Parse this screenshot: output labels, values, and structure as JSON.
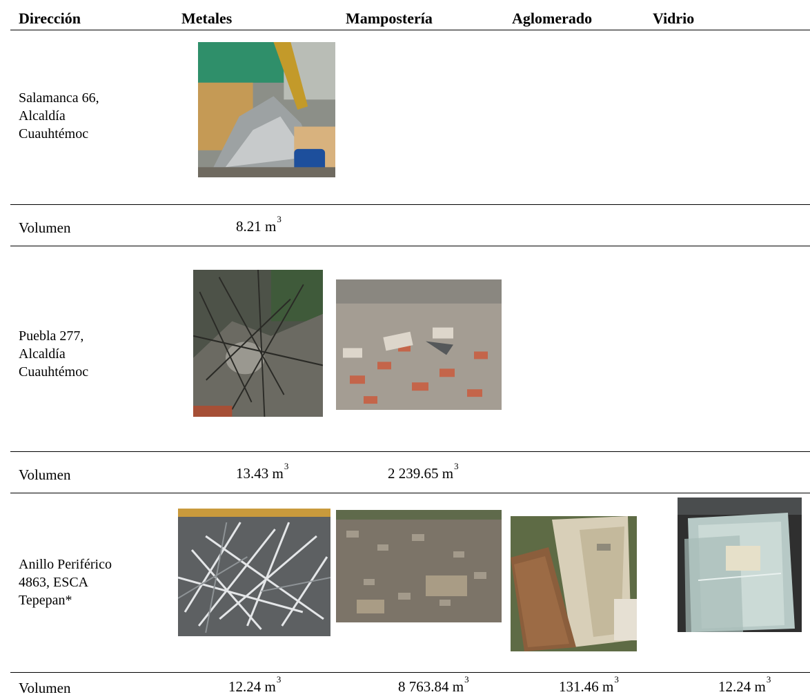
{
  "table": {
    "headers": [
      "Dirección",
      "Metales",
      "Mampostería",
      "Aglomerado",
      "Vidrio"
    ],
    "rows": [
      {
        "address_lines": [
          "Salamanca  66,",
          "Alcaldía",
          "Cuauhtémoc"
        ],
        "volume_label": "Volumen",
        "volumes": {
          "metales": "8.21 m",
          "mamposteria": "",
          "aglomerado": "",
          "vidrio": ""
        },
        "unit_exp": "3",
        "photos": [
          "metales"
        ]
      },
      {
        "address_lines": [
          "Puebla 277,",
          "Alcaldía",
          "Cuauhtémoc"
        ],
        "volume_label": "Volumen",
        "volumes": {
          "metales": "13.43 m",
          "mamposteria": "2 239.65 m",
          "aglomerado": "",
          "vidrio": ""
        },
        "unit_exp": "3",
        "photos": [
          "metales",
          "mamposteria"
        ]
      },
      {
        "address_lines": [
          "Anillo Periférico",
          "4863, ESCA",
          "Tepepan*"
        ],
        "volume_label": "Volumen",
        "volumes": {
          "metales": "12.24  m",
          "mamposteria": "8 763.84 m",
          "aglomerado": "131.46 m",
          "vidrio": "12.24 m"
        },
        "unit_exp": "3",
        "photos": [
          "metales",
          "mamposteria",
          "aglomerado",
          "vidrio"
        ]
      }
    ]
  },
  "colors": {
    "rule": "#000000",
    "text": "#000000"
  }
}
